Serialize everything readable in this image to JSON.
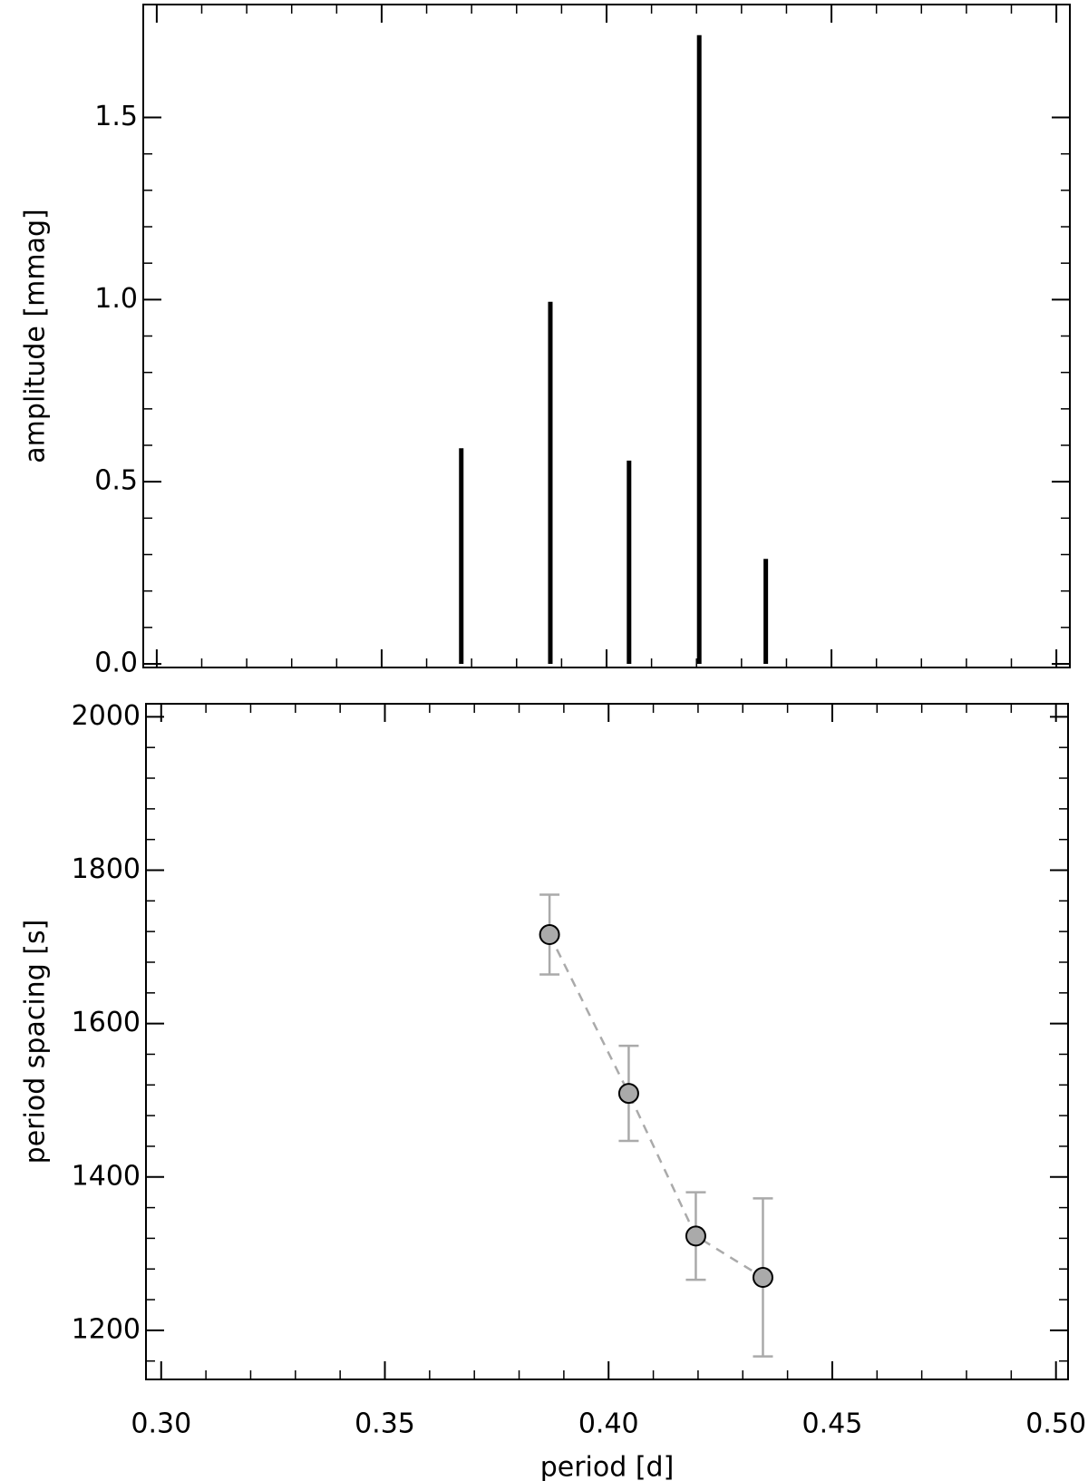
{
  "chart_data": [
    {
      "type": "bar",
      "ylabel": "amplitude [mmag]",
      "x": [
        0.3677,
        0.3875,
        0.405,
        0.4206,
        0.4354
      ],
      "values": [
        0.592,
        0.994,
        0.558,
        1.726,
        0.288
      ],
      "color": "#000000",
      "xlim": [
        0.297,
        0.503
      ],
      "xticks": [
        0.3,
        0.35,
        0.4,
        0.45,
        0.5
      ],
      "ylim": [
        -0.01,
        1.81
      ],
      "yticks": [
        {
          "value": 0,
          "label": "0.0"
        },
        {
          "value": 0.5,
          "label": "0.5"
        },
        {
          "value": 1,
          "label": "1.0"
        },
        {
          "value": 1.5,
          "label": "1.5"
        }
      ]
    },
    {
      "type": "scatter",
      "xlabel": "period [d]",
      "ylabel": "period spacing [s]",
      "x": [
        0.3868,
        0.4045,
        0.4195,
        0.4345
      ],
      "y": [
        1716,
        1509,
        1323,
        1269
      ],
      "yerr": [
        52,
        62,
        57,
        103
      ],
      "color": "#aaaaaa",
      "xlim": [
        0.2966,
        0.5027
      ],
      "xticks": [
        {
          "value": 0.3,
          "label": "0.30"
        },
        {
          "value": 0.35,
          "label": "0.35"
        },
        {
          "value": 0.4,
          "label": "0.40"
        },
        {
          "value": 0.45,
          "label": "0.45"
        },
        {
          "value": 0.5,
          "label": "0.50"
        }
      ],
      "ylim": [
        1136,
        2017
      ],
      "yticks": [
        1200,
        1400,
        1600,
        1800,
        2000
      ]
    }
  ]
}
